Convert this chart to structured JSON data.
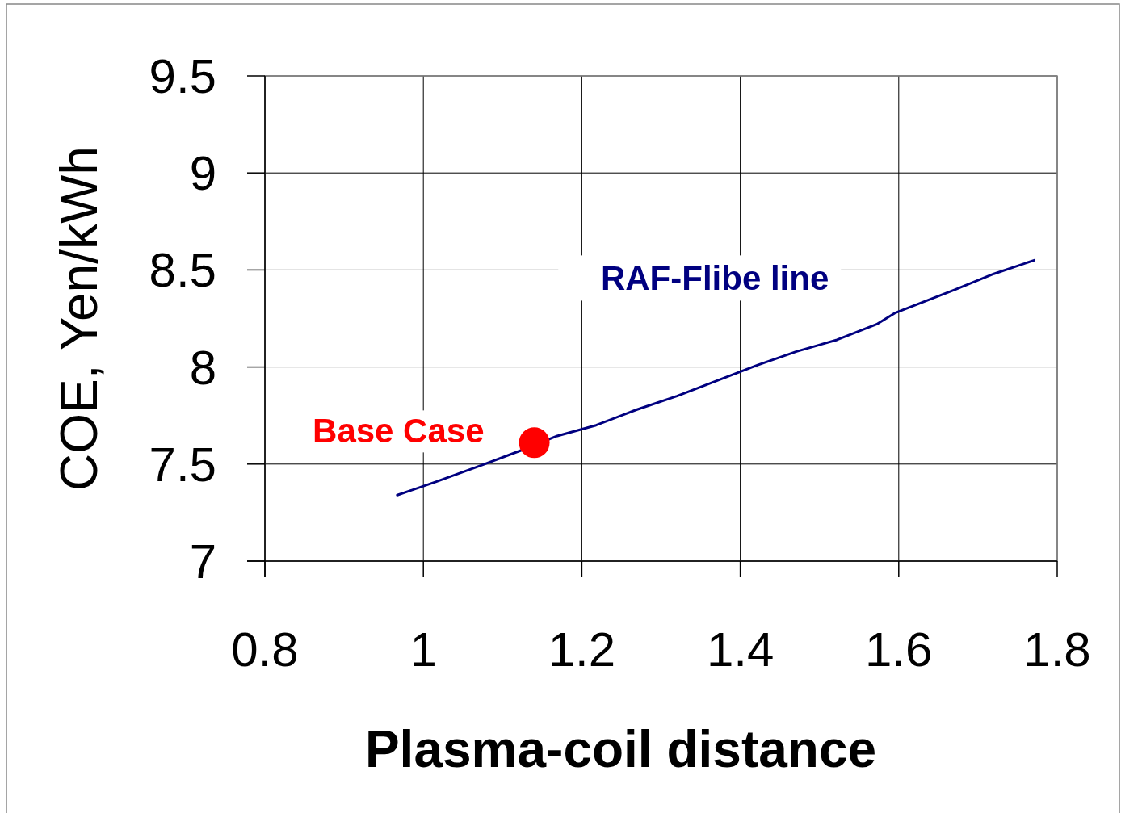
{
  "chart_data": {
    "type": "line",
    "xlabel": "Plasma-coil distance",
    "ylabel": "COE, Yen/kWh",
    "xlim": [
      0.8,
      1.8
    ],
    "xticks": [
      0.8,
      1,
      1.2,
      1.4,
      1.6,
      1.8
    ],
    "ylim": [
      7,
      9.5
    ],
    "yticks": [
      7,
      7.5,
      8,
      8.5,
      9,
      9.5
    ],
    "grid": true,
    "series": [
      {
        "name": "RAF-Flibe line",
        "color": "#000080",
        "marker": "none",
        "x": [
          0.967,
          1.017,
          1.071,
          1.123,
          1.169,
          1.218,
          1.269,
          1.32,
          1.371,
          1.422,
          1.471,
          1.522,
          1.572,
          1.596,
          1.672,
          1.72,
          1.771
        ],
        "values": [
          7.34,
          7.41,
          7.49,
          7.57,
          7.645,
          7.7,
          7.78,
          7.85,
          7.93,
          8.01,
          8.08,
          8.14,
          8.22,
          8.28,
          8.4,
          8.48,
          8.55
        ]
      },
      {
        "name": "Base Case",
        "type": "scatter",
        "color": "#ff0000",
        "marker": "circle",
        "x": [
          1.14
        ],
        "values": [
          7.61
        ]
      }
    ]
  }
}
